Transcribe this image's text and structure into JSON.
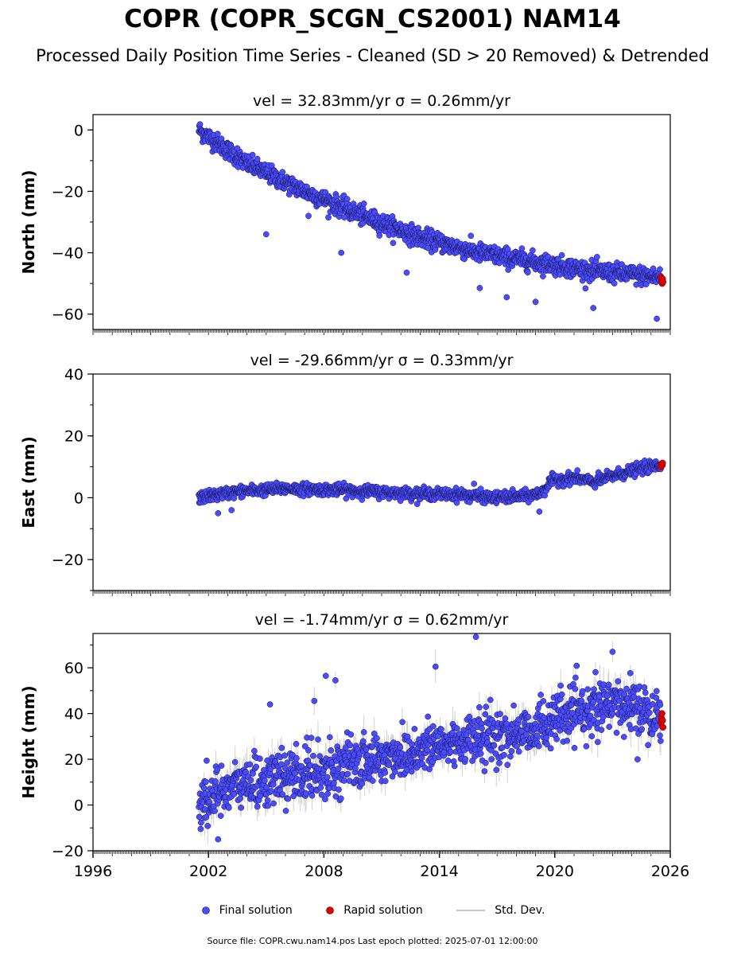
{
  "title": "COPR (COPR_SCGN_CS2001) NAM14",
  "subtitle": "Processed Daily Position Time Series - Cleaned (SD > 20 Removed) & Detrended",
  "legend": {
    "final": "Final solution",
    "rapid": "Rapid solution",
    "std": "Std. Dev."
  },
  "footer": "Source file: COPR.cwu.nam14.pos  Last epoch plotted: 2025-07-01 12:00:00",
  "colors": {
    "final": "#4b4bff",
    "rapid": "#e00000",
    "std": "#c8c8c8"
  },
  "chart_data": [
    {
      "type": "scatter",
      "name": "north",
      "title": "vel = 32.83mm/yr   σ = 0.26mm/yr",
      "ylabel": "North (mm)",
      "xlim": [
        1996,
        2026
      ],
      "ylim": [
        -65,
        5
      ],
      "yticks": [
        0,
        -20,
        -40,
        -60
      ],
      "ytick_labels": [
        "0",
        "−20",
        "−40",
        "−60"
      ],
      "x_range": [
        2001.5,
        2025.5
      ],
      "trend": [
        [
          2001.5,
          0
        ],
        [
          2004,
          -11
        ],
        [
          2007,
          -20
        ],
        [
          2010,
          -28
        ],
        [
          2013,
          -35
        ],
        [
          2016,
          -40
        ],
        [
          2019,
          -43
        ],
        [
          2022,
          -46
        ],
        [
          2025.5,
          -48
        ]
      ],
      "noise_sd": 1.5,
      "std_dev_mm": 1.2,
      "outliers": [
        [
          2005.0,
          -34
        ],
        [
          2008.9,
          -40
        ],
        [
          2012.3,
          -46.5
        ],
        [
          2016.1,
          -51.5
        ],
        [
          2017.5,
          -54.5
        ],
        [
          2019.0,
          -56
        ],
        [
          2022.0,
          -58
        ],
        [
          2025.3,
          -61.5
        ],
        [
          2003.5,
          -6
        ],
        [
          2007.2,
          -28
        ]
      ],
      "rapid": [
        [
          2025.52,
          -48
        ],
        [
          2025.55,
          -49
        ],
        [
          2025.58,
          -50
        ],
        [
          2025.6,
          -48.5
        ],
        [
          2025.62,
          -49.5
        ]
      ]
    },
    {
      "type": "scatter",
      "name": "east",
      "title": "vel = -29.66mm/yr   σ = 0.33mm/yr",
      "ylabel": "East (mm)",
      "xlim": [
        1996,
        2026
      ],
      "ylim": [
        -30,
        40
      ],
      "yticks": [
        40,
        20,
        0,
        -20
      ],
      "ytick_labels": [
        "40",
        "20",
        "0",
        "−20"
      ],
      "x_range": [
        2001.5,
        2025.5
      ],
      "trend": [
        [
          2001.5,
          0
        ],
        [
          2003.5,
          2
        ],
        [
          2006,
          3
        ],
        [
          2009,
          2.5
        ],
        [
          2012,
          1.5
        ],
        [
          2015,
          1
        ],
        [
          2017,
          0
        ],
        [
          2018.5,
          0.5
        ],
        [
          2019.3,
          1.5
        ],
        [
          2019.8,
          5.5
        ],
        [
          2021,
          6.5
        ],
        [
          2022,
          5
        ],
        [
          2023,
          7
        ],
        [
          2024.5,
          9.5
        ],
        [
          2025.5,
          10.5
        ]
      ],
      "noise_sd": 0.9,
      "std_dev_mm": 1.1,
      "outliers": [
        [
          2015.8,
          4.5
        ],
        [
          2019.2,
          -4.5
        ],
        [
          2002.5,
          -5
        ],
        [
          2003.2,
          -4
        ]
      ],
      "rapid": [
        [
          2025.52,
          10
        ],
        [
          2025.55,
          11
        ],
        [
          2025.58,
          10.5
        ],
        [
          2025.6,
          11.2
        ]
      ]
    },
    {
      "type": "scatter",
      "name": "height",
      "title": "vel = -1.74mm/yr   σ = 0.62mm/yr",
      "ylabel": "Height (mm)",
      "xlim": [
        1996,
        2026
      ],
      "ylim": [
        -20,
        75
      ],
      "yticks": [
        60,
        40,
        20,
        0,
        -20
      ],
      "ytick_labels": [
        "60",
        "40",
        "20",
        "0",
        "−20"
      ],
      "xticks": [
        1996,
        2002,
        2008,
        2014,
        2020,
        2026
      ],
      "xtick_labels": [
        "1996",
        "2002",
        "2008",
        "2014",
        "2020",
        "2026"
      ],
      "x_range": [
        2001.5,
        2025.5
      ],
      "trend": [
        [
          2001.5,
          0
        ],
        [
          2003,
          8
        ],
        [
          2006,
          12
        ],
        [
          2009,
          17
        ],
        [
          2012,
          22
        ],
        [
          2015,
          28
        ],
        [
          2018,
          31
        ],
        [
          2020,
          37
        ],
        [
          2022,
          42
        ],
        [
          2024,
          44
        ],
        [
          2025.5,
          40
        ]
      ],
      "noise_sd": 5.5,
      "std_dev_mm": 5.5,
      "outliers": [
        [
          2015.9,
          73.5
        ],
        [
          2013.8,
          60.5
        ],
        [
          2008.1,
          56.5
        ],
        [
          2008.6,
          54.5
        ],
        [
          2005.2,
          44
        ],
        [
          2007.5,
          45.5
        ],
        [
          2002.5,
          -15
        ],
        [
          2023.0,
          67
        ],
        [
          2024.3,
          20
        ]
      ],
      "rapid": [
        [
          2025.52,
          36
        ],
        [
          2025.54,
          38
        ],
        [
          2025.57,
          40
        ],
        [
          2025.6,
          37
        ],
        [
          2025.62,
          34
        ]
      ]
    }
  ]
}
